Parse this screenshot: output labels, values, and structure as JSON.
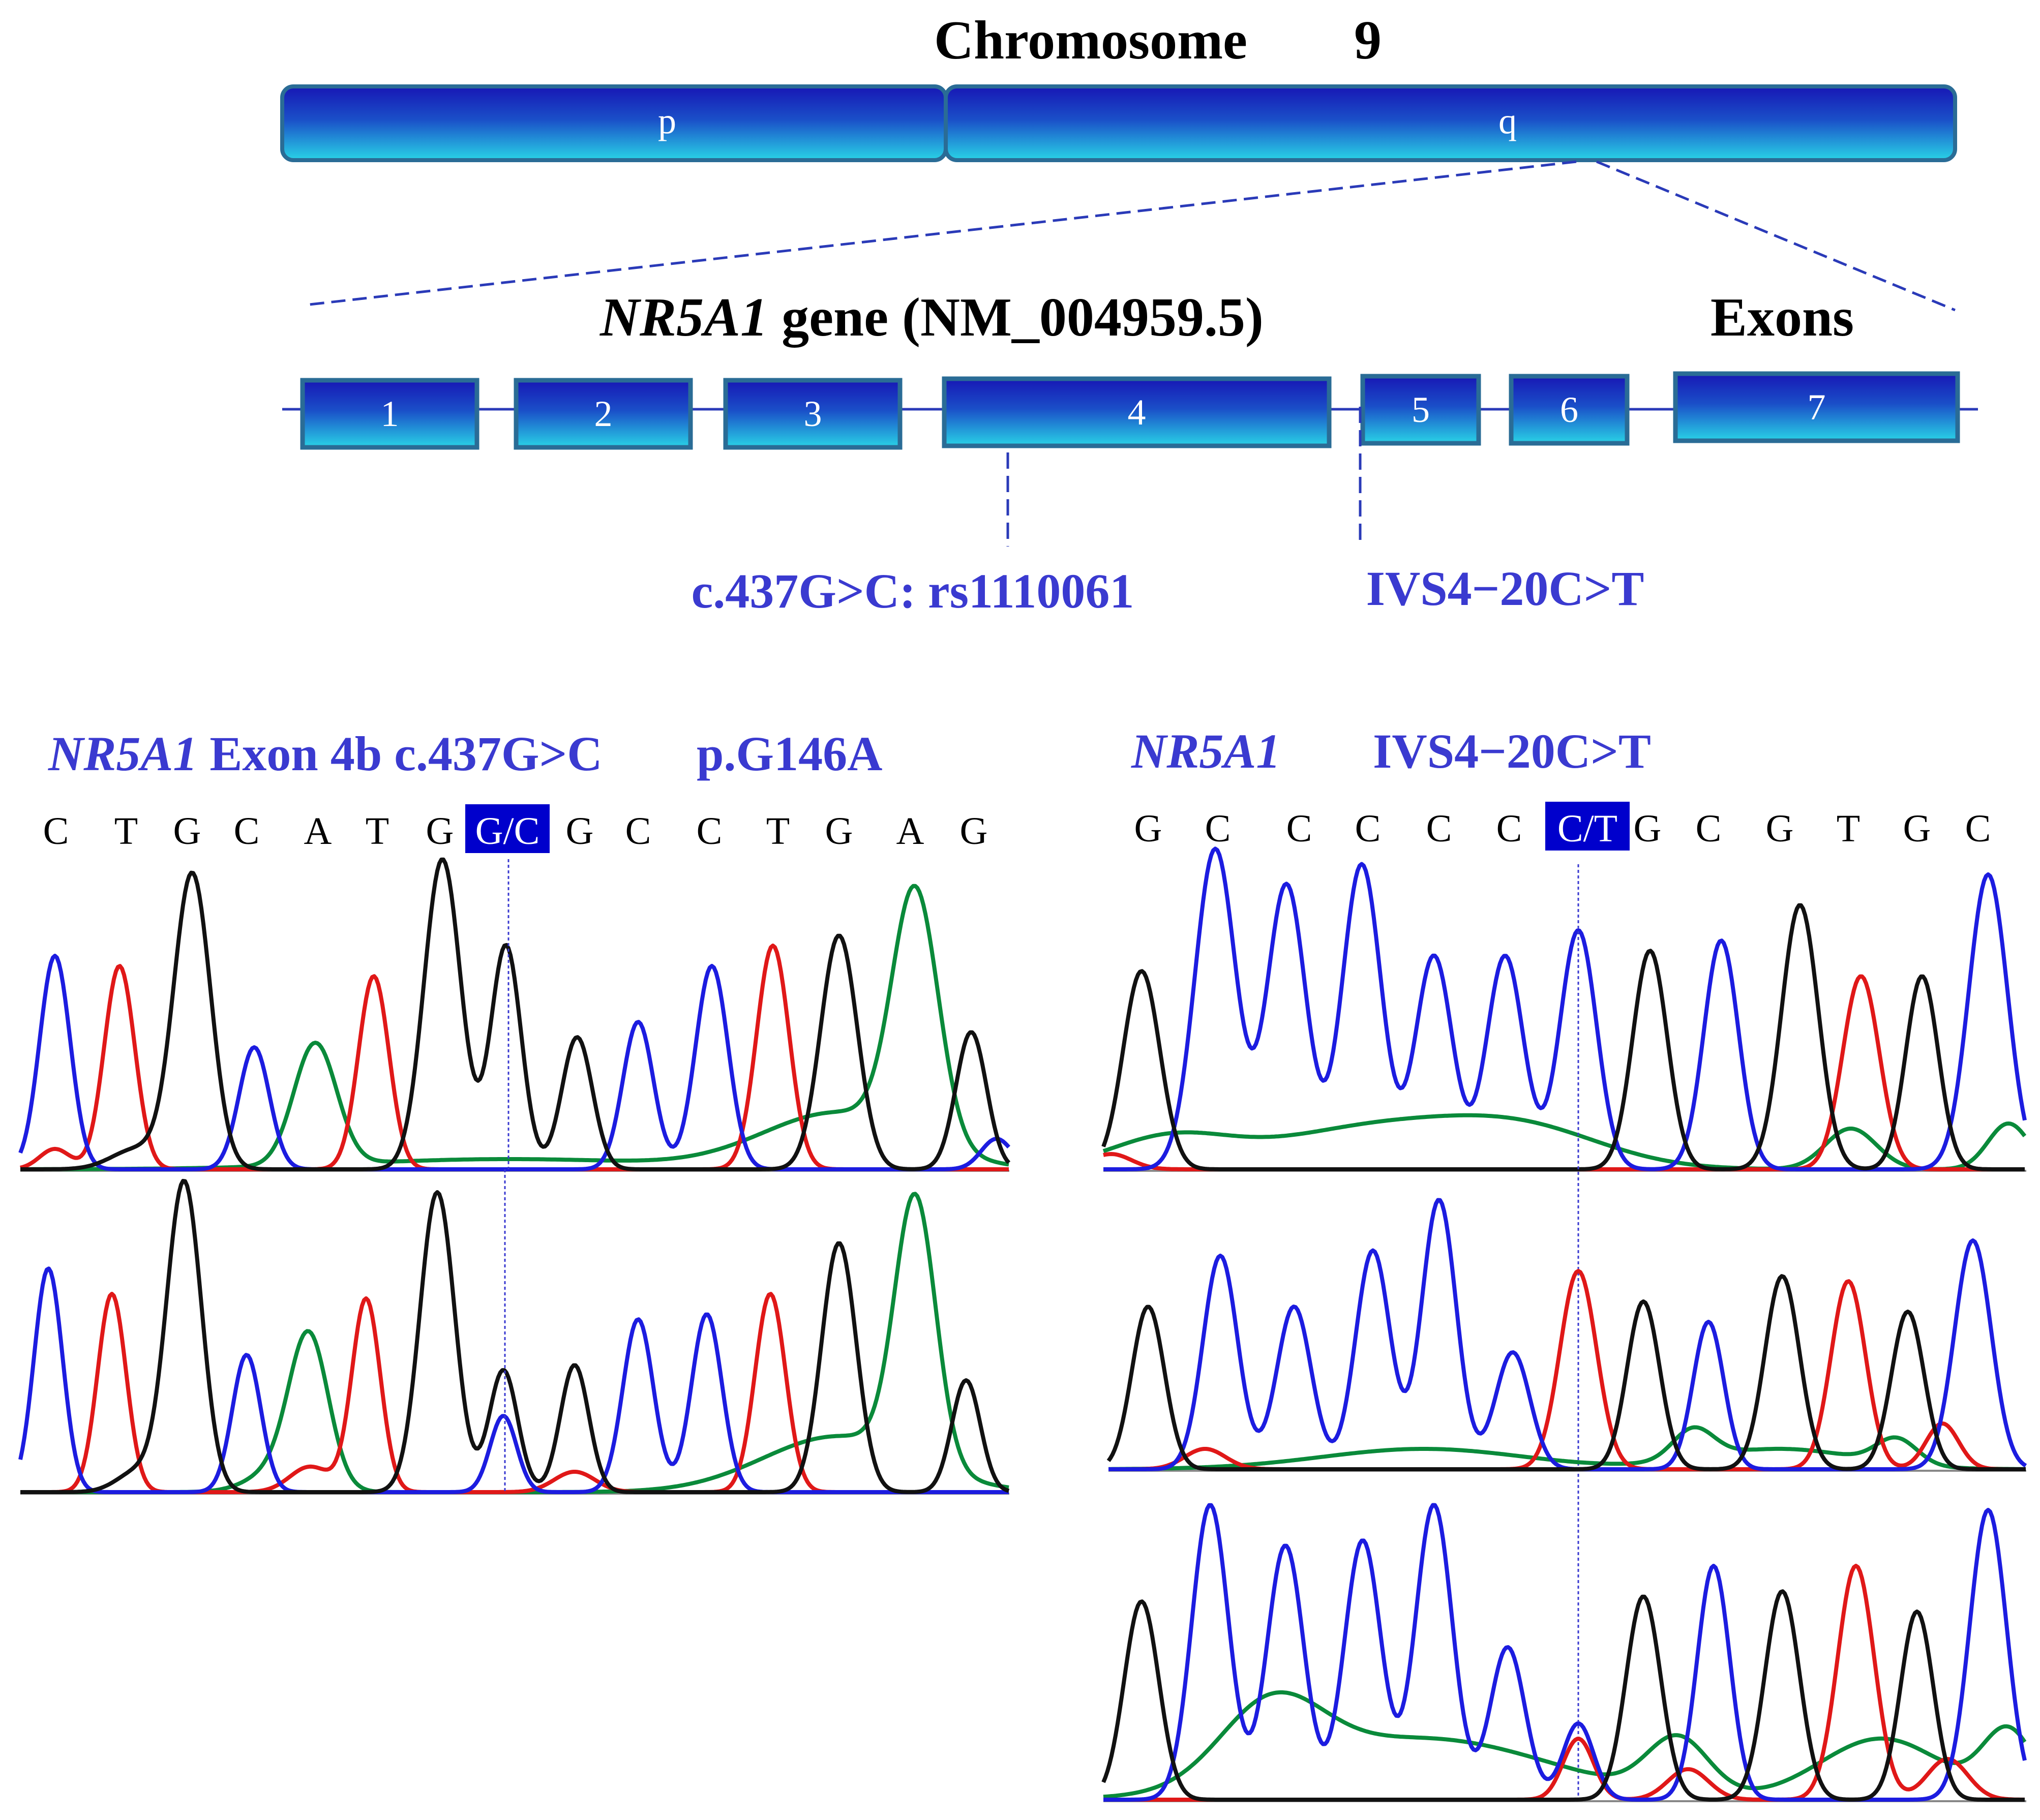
{
  "colors": {
    "bar_dark": "#1717b5",
    "bar_light": "#29d3e6",
    "bar_border": "#2a6c96",
    "label_blue": "#3a3ad0",
    "highlight_bg": "#0000cc",
    "trace_A": "#0a8a3a",
    "trace_C": "#1c1ce0",
    "trace_G": "#111111",
    "trace_T": "#e01818"
  },
  "chromosome": {
    "title": "Chromosome",
    "number": "9",
    "arm_p": "p",
    "arm_q": "q"
  },
  "gene": {
    "symbol": "NR5A1",
    "rest": " gene (NM_004959.5)",
    "exons_heading": "Exons",
    "exons": [
      "1",
      "2",
      "3",
      "4",
      "5",
      "6",
      "7"
    ]
  },
  "variants": {
    "v1": "c.437G>C: rs1110061",
    "v2": "IVS4−20C>T"
  },
  "left_panel": {
    "gene": "NR5A1",
    "title_rest": " Exon 4b c.437G>C",
    "protein": "p.G146A",
    "bases": [
      "C",
      "T",
      "G",
      "C",
      "A",
      "T",
      "G",
      "G/C",
      "G",
      "C",
      "C",
      "T",
      "G",
      "A",
      "G"
    ],
    "highlight_index": 7
  },
  "right_panel": {
    "gene": "NR5A1",
    "title_rest": "IVS4−20C>T",
    "bases": [
      "G",
      "C",
      "C",
      "C",
      "C",
      "C",
      "C/T",
      "G",
      "C",
      "G",
      "T",
      "G",
      "C"
    ],
    "highlight_index": 6
  }
}
